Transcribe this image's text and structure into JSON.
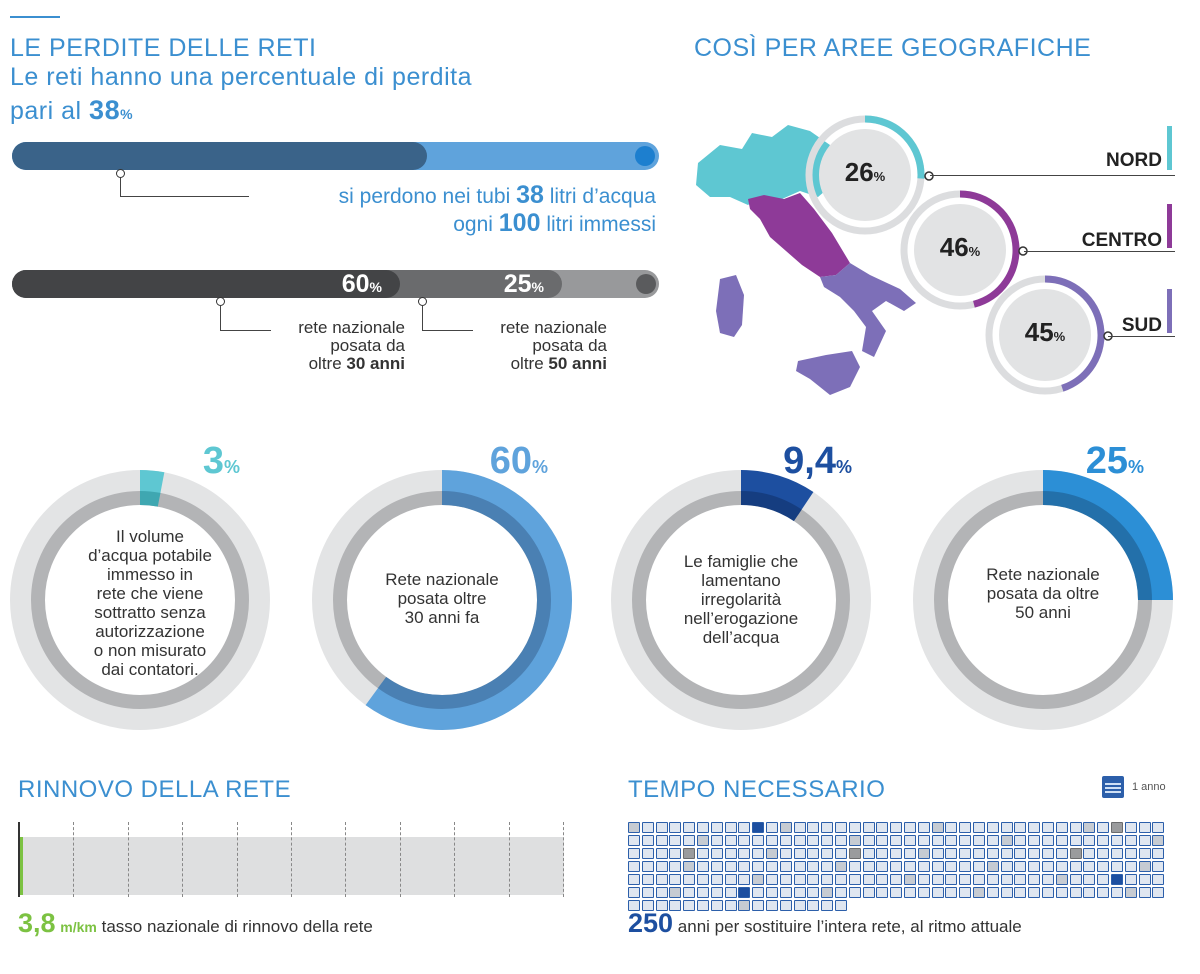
{
  "header": {
    "title": "LE PERDITE DELLE RETI",
    "subtitle": "Le reti hanno una percentuale di perdita",
    "line3_prefix": "pari al",
    "line3_value": "38",
    "line3_unit": "%"
  },
  "loss_bar": {
    "lost_fraction": 0.38,
    "text_1_prefix": "si perdono nei tubi",
    "text_1_value": "38",
    "text_1_suffix": "litri d’acqua",
    "text_2_prefix": "ogni",
    "text_2_value": "100",
    "text_2_suffix": "litri immessi"
  },
  "age_bar": {
    "segment_1_value": "60",
    "segment_1_fraction": 0.6,
    "segment_2_value": "25",
    "segment_2_fraction": 0.25,
    "unit": "%",
    "label_1_l1": "rete nazionale",
    "label_1_l2": "posata da",
    "label_1_l3_prefix": "oltre",
    "label_1_l3_bold": "30 anni",
    "label_2_l1": "rete nazionale",
    "label_2_l2": "posata da",
    "label_2_l3_prefix": "oltre",
    "label_2_l3_bold": "50 anni"
  },
  "regions": {
    "title": "COSÌ PER AREE GEOGRAFICHE",
    "unit": "%",
    "items": [
      {
        "name": "NORD",
        "value": "26",
        "fraction": 0.26,
        "color": "#5ec7d2"
      },
      {
        "name": "CENTRO",
        "value": "46",
        "fraction": 0.46,
        "color": "#8e3a98"
      },
      {
        "name": "SUD",
        "value": "45",
        "fraction": 0.45,
        "color": "#7d6fb8"
      }
    ]
  },
  "donuts": {
    "unit": "%",
    "items": [
      {
        "value": "3",
        "fraction": 0.03,
        "color": "#5ec7d2",
        "dark": "#3fa7b1",
        "lines": [
          "Il volume",
          "d’acqua potabile",
          "immesso in",
          "rete che viene",
          "sottratto senza",
          "autorizzazione",
          "o non misurato",
          "dai contatori."
        ]
      },
      {
        "value": "60",
        "fraction": 0.6,
        "color": "#5fa3dc",
        "dark": "#4a80b3",
        "lines": [
          "Rete nazionale",
          "posata oltre",
          "30 anni fa"
        ]
      },
      {
        "value": "9,4",
        "fraction": 0.094,
        "color": "#1d4fa0",
        "dark": "#153d80",
        "lines": [
          "Le famiglie che",
          "lamentano",
          "irregolarità",
          "nell’erogazione",
          "dell’acqua"
        ]
      },
      {
        "value": "25",
        "fraction": 0.25,
        "color": "#2c8fd6",
        "dark": "#2370aa",
        "lines": [
          "Rete nazionale",
          "posata da oltre",
          "50 anni"
        ]
      }
    ]
  },
  "renewal": {
    "title": "RINNOVO DELLA RETE",
    "value": "3,8",
    "unit": "m/km",
    "text": "tasso nazionale di rinnovo della rete",
    "bar_fraction": 0.0038
  },
  "time": {
    "title": "TEMPO NECESSARIO",
    "legend": "1 anno",
    "value": "250",
    "text": "anni per sostituire l’intera rete, al ritmo attuale",
    "total": 250
  },
  "chart_data": [
    {
      "type": "bar",
      "title": "LE PERDITE DELLE RETI",
      "categories": [
        "perdite",
        "immessi"
      ],
      "values": [
        38,
        100
      ]
    },
    {
      "type": "bar",
      "categories": [
        "oltre 30 anni",
        "oltre 50 anni"
      ],
      "values": [
        60,
        25
      ]
    },
    {
      "type": "pie",
      "title": "COSÌ PER AREE GEOGRAFICHE",
      "categories": [
        "NORD",
        "CENTRO",
        "SUD"
      ],
      "values": [
        26,
        46,
        45
      ]
    },
    {
      "type": "pie",
      "categories": [
        "acqua non autorizzata",
        "rete oltre 30 anni",
        "famiglie irregolarità",
        "rete oltre 50 anni"
      ],
      "values": [
        3,
        60,
        9.4,
        25
      ]
    }
  ]
}
